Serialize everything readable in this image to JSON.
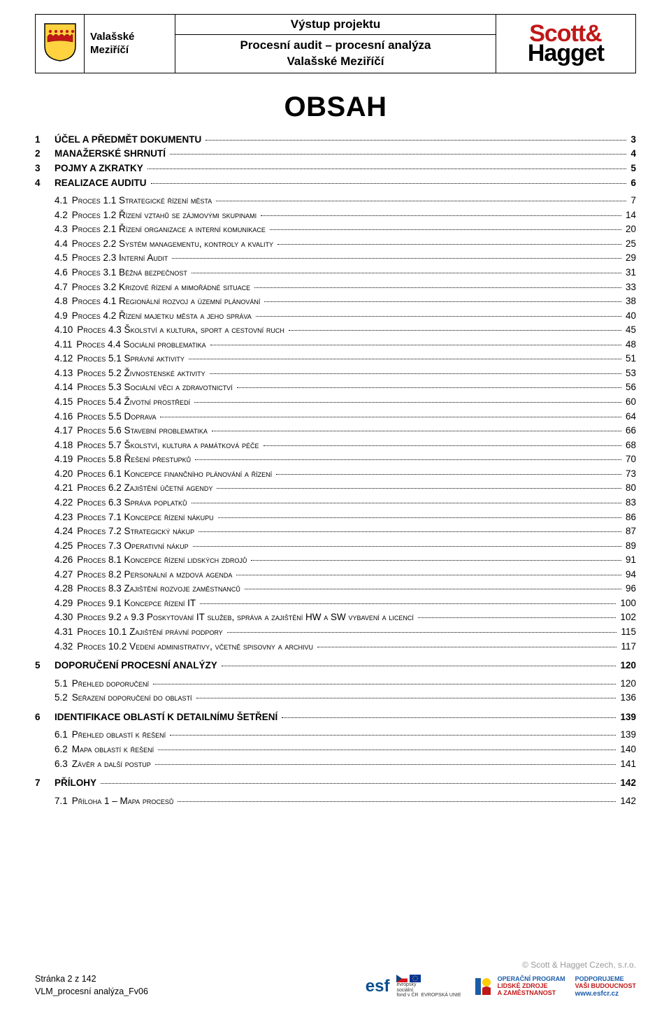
{
  "header": {
    "city_line1": "Valašské",
    "city_line2": "Meziříčí",
    "title": "Výstup projektu",
    "subtitle_line1": "Procesní audit – procesní analýza",
    "subtitle_line2": "Valašské Meziříčí",
    "logo_top": "Scott",
    "logo_amp": "&",
    "logo_bottom": "Hagget",
    "crest_colors": {
      "shield": "#ffd23f",
      "border": "#1a1a1a",
      "band": "#c01818"
    }
  },
  "obsah_title": "OBSAH",
  "toc": [
    {
      "level": 1,
      "num": "1",
      "text": "ÚČEL A PŘEDMĚT DOKUMENTU",
      "page": "3"
    },
    {
      "level": 1,
      "num": "2",
      "text": "MANAŽERSKÉ SHRNUTÍ",
      "page": "4"
    },
    {
      "level": 1,
      "num": "3",
      "text": "POJMY A ZKRATKY",
      "page": "5"
    },
    {
      "level": 1,
      "num": "4",
      "text": "REALIZACE AUDITU",
      "page": "6"
    },
    {
      "level": 2,
      "num": "4.1",
      "text": "Proces 1.1 Strategické řízení města",
      "page": "7"
    },
    {
      "level": 2,
      "num": "4.2",
      "text": "Proces 1.2 Řízení vztahů se zájmovými skupinami",
      "page": "14"
    },
    {
      "level": 2,
      "num": "4.3",
      "text": "Proces 2.1 Řízení organizace a interní komunikace",
      "page": "20"
    },
    {
      "level": 2,
      "num": "4.4",
      "text": "Proces 2.2 Systém managementu, kontroly a kvality",
      "page": "25"
    },
    {
      "level": 2,
      "num": "4.5",
      "text": "Proces 2.3 Interní Audit",
      "page": "29"
    },
    {
      "level": 2,
      "num": "4.6",
      "text": "Proces 3.1 Běžná bezpečnost",
      "page": "31"
    },
    {
      "level": 2,
      "num": "4.7",
      "text": "Proces 3.2 Krizové řízení a mimořádné situace",
      "page": "33"
    },
    {
      "level": 2,
      "num": "4.8",
      "text": "Proces 4.1 Regionální rozvoj a územní plánování",
      "page": "38"
    },
    {
      "level": 2,
      "num": "4.9",
      "text": "Proces 4.2 Řízení majetku města a jeho správa",
      "page": "40"
    },
    {
      "level": 2,
      "num": "4.10",
      "text": "Proces 4.3 Školství a kultura, sport a cestovní ruch",
      "page": "45"
    },
    {
      "level": 2,
      "num": "4.11",
      "text": "Proces 4.4 Sociální problematika",
      "page": "48"
    },
    {
      "level": 2,
      "num": "4.12",
      "text": "Proces 5.1 Správní aktivity",
      "page": "51"
    },
    {
      "level": 2,
      "num": "4.13",
      "text": "Proces 5.2 Živnostenské aktivity",
      "page": "53"
    },
    {
      "level": 2,
      "num": "4.14",
      "text": "Proces 5.3 Sociální věci a zdravotnictví",
      "page": "56"
    },
    {
      "level": 2,
      "num": "4.15",
      "text": "Proces 5.4 Životní prostředí",
      "page": "60"
    },
    {
      "level": 2,
      "num": "4.16",
      "text": "Proces 5.5 Doprava",
      "page": "64"
    },
    {
      "level": 2,
      "num": "4.17",
      "text": "Proces 5.6 Stavební problematika",
      "page": "66"
    },
    {
      "level": 2,
      "num": "4.18",
      "text": "Proces 5.7 Školství, kultura a památková péče",
      "page": "68"
    },
    {
      "level": 2,
      "num": "4.19",
      "text": "Proces 5.8 Řešení přestupků",
      "page": "70"
    },
    {
      "level": 2,
      "num": "4.20",
      "text": "Proces 6.1 Koncepce finančního plánování a řízení",
      "page": "73"
    },
    {
      "level": 2,
      "num": "4.21",
      "text": "Proces 6.2 Zajištění účetní agendy",
      "page": "80"
    },
    {
      "level": 2,
      "num": "4.22",
      "text": "Proces 6.3 Správa poplatků",
      "page": "83"
    },
    {
      "level": 2,
      "num": "4.23",
      "text": "Proces 7.1 Koncepce řízení nákupu",
      "page": "86"
    },
    {
      "level": 2,
      "num": "4.24",
      "text": "Proces 7.2 Strategický nákup",
      "page": "87"
    },
    {
      "level": 2,
      "num": "4.25",
      "text": "Proces 7.3 Operativní nákup",
      "page": "89"
    },
    {
      "level": 2,
      "num": "4.26",
      "text": "Proces 8.1 Koncepce řízení lidských zdrojů",
      "page": "91"
    },
    {
      "level": 2,
      "num": "4.27",
      "text": "Proces 8.2 Personální a mzdová agenda",
      "page": "94"
    },
    {
      "level": 2,
      "num": "4.28",
      "text": "Proces 8.3 Zajištění rozvoje zaměstnanců",
      "page": "96"
    },
    {
      "level": 2,
      "num": "4.29",
      "text": "Proces 9.1 Koncepce řízení IT",
      "page": "100"
    },
    {
      "level": 2,
      "num": "4.30",
      "text": "Proces 9.2 a 9.3 Poskytování IT služeb, správa a zajištění HW a SW vybavení a licencí",
      "page": "102"
    },
    {
      "level": 2,
      "num": "4.31",
      "text": "Proces 10.1 Zajištění právní podpory",
      "page": "115"
    },
    {
      "level": 2,
      "num": "4.32",
      "text": "Proces 10.2 Vedení administrativy, včetně spisovny a archivu",
      "page": "117"
    },
    {
      "level": 1,
      "num": "5",
      "text": "DOPORUČENÍ PROCESNÍ ANALÝZY",
      "page": "120"
    },
    {
      "level": 2,
      "num": "5.1",
      "text": "Přehled doporučení",
      "page": "120"
    },
    {
      "level": 2,
      "num": "5.2",
      "text": "Seřazení doporučení do oblastí",
      "page": "136"
    },
    {
      "level": 1,
      "num": "6",
      "text": "IDENTIFIKACE OBLASTÍ K DETAILNÍMU ŠETŘENÍ",
      "page": "139"
    },
    {
      "level": 2,
      "num": "6.1",
      "text": "Přehled oblastí k řešení",
      "page": "139"
    },
    {
      "level": 2,
      "num": "6.2",
      "text": "Mapa oblastí k řešení",
      "page": "140"
    },
    {
      "level": 2,
      "num": "6.3",
      "text": "Závěr a další postup",
      "page": "141"
    },
    {
      "level": 1,
      "num": "7",
      "text": "PŘÍLOHY",
      "page": "142"
    },
    {
      "level": 2,
      "num": "7.1",
      "text": "Příloha 1 – Mapa procesů",
      "page": "142"
    }
  ],
  "footer": {
    "copyright": "© Scott & Hagget Czech, s.r.o.",
    "page_info": "Stránka 2 z 142",
    "doc_id": "VLM_procesní analýza_Fv06",
    "esf_label": "esf",
    "esf_line1": "evropský",
    "esf_line2": "sociální",
    "esf_line3": "fond v ČR",
    "esf_line4": "EVROPSKÁ UNIE",
    "op_line1": "OPERAČNÍ PROGRAM",
    "op_line2": "LIDSKÉ ZDROJE",
    "op_line3": "A ZAMĚSTNANOST",
    "sup_line1": "PODPORUJEME",
    "sup_line2": "VAŠI BUDOUCNOST",
    "sup_url": "www.esfcr.cz",
    "colors": {
      "eu_blue": "#003399",
      "eu_gold": "#ffcc00",
      "cz_red": "#d7141a",
      "op_blue": "#1a5ca8",
      "op_red": "#c01818",
      "copy_gray": "#9a9a9a"
    }
  }
}
